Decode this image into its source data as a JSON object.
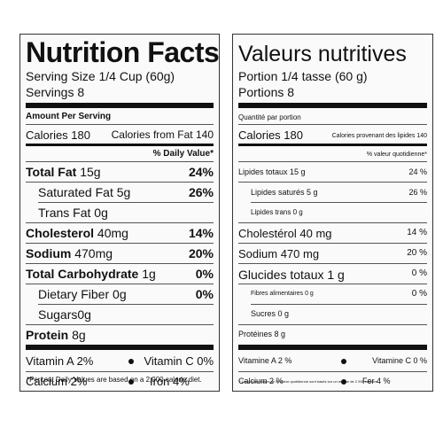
{
  "en": {
    "title": "Nutrition Facts",
    "serving_size": "Serving Size 1/4 Cup (60g)",
    "servings": "Servings 8",
    "amount_per_serving": "Amount Per Serving",
    "calories": "Calories 180",
    "calories_from_fat": "Calories from Fat 140",
    "dv_header": "% Daily Value*",
    "rows": [
      {
        "label": "Total Fat",
        "amount": "15g",
        "dv": "24%"
      },
      {
        "label": "Saturated Fat",
        "amount": "5g",
        "dv": "26%"
      },
      {
        "label": "Trans Fat",
        "amount": "0g",
        "dv": ""
      },
      {
        "label": "Cholesterol",
        "amount": "40mg",
        "dv": "14%"
      },
      {
        "label": "Sodium",
        "amount": "470mg",
        "dv": "20%"
      },
      {
        "label": "Total Carbohydrate",
        "amount": "1g",
        "dv": "0%"
      },
      {
        "label": "Dietary Fiber",
        "amount": "0g",
        "dv": "0%"
      },
      {
        "label": "Sugars",
        "amount": "0g",
        "dv": ""
      },
      {
        "label": "Protein",
        "amount": "8g",
        "dv": ""
      }
    ],
    "vitamin_a": "Vitamin A 2%",
    "vitamin_c": "Vitamin C 0%",
    "calcium": "Calcium 2%",
    "iron": "Iron 4%",
    "footnote": "*Percent Daily Values are based on a 2,000 calorie diet."
  },
  "fr": {
    "title": "Valeurs nutritives",
    "portion": "Portion 1/4 tasse (60 g)",
    "portions": "Portions 8",
    "amount_per_portion": "Quantité par portion",
    "calories": "Calories 180",
    "calories_from_fat": "Calories provenant des lipides 140",
    "dv_header": "% valeur quotidienne*",
    "rows": [
      {
        "label": "Lipides totaux 15 g",
        "dv": "24 %"
      },
      {
        "label": "Lipides saturés 5 g",
        "dv": "26 %"
      },
      {
        "label": "Lipides trans 0 g",
        "dv": ""
      },
      {
        "label": "Cholestérol 40 mg",
        "dv": "14 %"
      },
      {
        "label": "Sodium 470 mg",
        "dv": "20 %"
      },
      {
        "label": "Glucides totaux 1 g",
        "dv": "0 %"
      },
      {
        "label": "Fibres alimentaires 0 g",
        "dv": "0 %"
      },
      {
        "label": "Sucres 0 g",
        "dv": ""
      },
      {
        "label": "Protéines 8 g",
        "dv": ""
      }
    ],
    "vitamin_a": "Vitamine A 2 %",
    "vitamin_c": "Vitamine C 0 %",
    "calcium": "Calcium 2 %",
    "iron": "Fer 4 %",
    "footnote": "* Les pourcentages de la valeur quotidienne sont basés sur un régime de 2 000 calories."
  }
}
